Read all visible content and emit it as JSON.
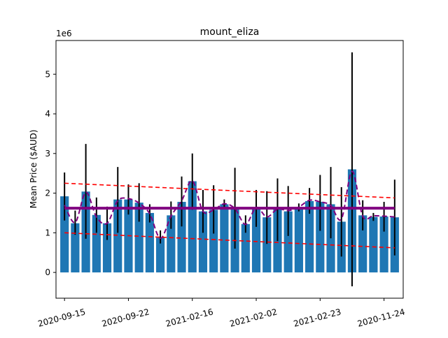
{
  "chart_data": {
    "type": "bar",
    "title": "mount_eliza",
    "ylabel": "Mean Price ($AUD)",
    "xlabel": "",
    "y_offset_label": "1e6",
    "y_ticks": [
      0,
      1000000,
      2000000,
      3000000,
      4000000,
      5000000
    ],
    "y_tick_labels": [
      "0",
      "1",
      "2",
      "3",
      "4",
      "5"
    ],
    "ylim": [
      -650000,
      5850000
    ],
    "x_tick_labels": [
      {
        "index": 0,
        "label": "2020-09-15"
      },
      {
        "index": 6,
        "label": "2020-09-22"
      },
      {
        "index": 12,
        "label": "2021-02-16"
      },
      {
        "index": 18,
        "label": "2021-02-02"
      },
      {
        "index": 24,
        "label": "2021-02-23"
      },
      {
        "index": 30,
        "label": "2020-11-24"
      }
    ],
    "bar_count": 32,
    "series": [
      {
        "kind": "bar",
        "color": "#1f77b4",
        "values": [
          1920000,
          1240000,
          2040000,
          1450000,
          1240000,
          1840000,
          1840000,
          1760000,
          1500000,
          880000,
          1440000,
          1780000,
          2300000,
          1540000,
          1580000,
          1720000,
          1620000,
          1220000,
          1620000,
          1390000,
          1620000,
          1540000,
          1640000,
          1800000,
          1780000,
          1720000,
          1280000,
          2600000,
          1440000,
          1400000,
          1410000,
          1390000
        ],
        "err_low": [
          1310000,
          950000,
          850000,
          1000000,
          820000,
          1000000,
          1460000,
          1280000,
          1260000,
          730000,
          1100000,
          1160000,
          1580000,
          1000000,
          980000,
          1600000,
          600000,
          1000000,
          1150000,
          720000,
          790000,
          920000,
          1540000,
          1480000,
          1050000,
          860000,
          400000,
          -350000,
          1060000,
          1300000,
          1030000,
          430000
        ],
        "err_high": [
          2520000,
          1560000,
          3240000,
          1890000,
          1660000,
          2660000,
          2220000,
          2250000,
          1720000,
          1060000,
          1790000,
          2420000,
          3000000,
          2080000,
          2200000,
          1840000,
          2640000,
          1440000,
          2080000,
          2050000,
          2370000,
          2180000,
          1740000,
          2130000,
          2460000,
          2660000,
          2150000,
          5550000,
          1820000,
          1500000,
          1780000,
          2340000
        ]
      },
      {
        "kind": "smoothed-line",
        "color": "#800080",
        "style": "dashed",
        "values": [
          1700000,
          1260000,
          2020000,
          1400000,
          1240000,
          1810000,
          1860000,
          1750000,
          1480000,
          860000,
          1420000,
          1810000,
          2310000,
          1540000,
          1580000,
          1730000,
          1610000,
          1210000,
          1640000,
          1400000,
          1600000,
          1560000,
          1650000,
          1820000,
          1780000,
          1690000,
          1350000,
          2550000,
          1420000,
          1430000,
          1420000,
          1400000
        ]
      },
      {
        "kind": "hline",
        "color": "#800080",
        "style": "solid",
        "y": 1620000
      },
      {
        "kind": "trend",
        "color": "#ff0000",
        "style": "dashed",
        "x": [
          0,
          31
        ],
        "y": [
          2250000,
          1880000
        ]
      },
      {
        "kind": "trend",
        "color": "#ff0000",
        "style": "dashed",
        "x": [
          0,
          31
        ],
        "y": [
          1000000,
          620000
        ]
      }
    ]
  }
}
